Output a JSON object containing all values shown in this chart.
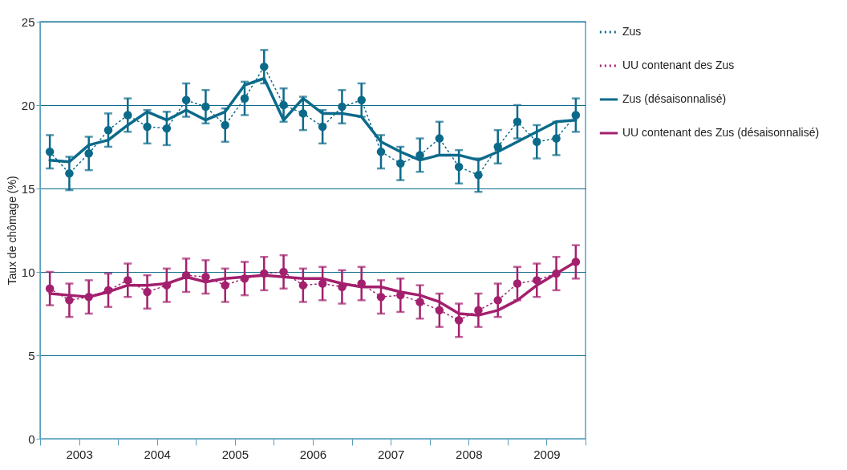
{
  "chart_data": {
    "type": "line",
    "ylabel": "Taux de chômage (%)",
    "x": [
      2003.125,
      2003.375,
      2003.625,
      2003.875,
      2004.125,
      2004.375,
      2004.625,
      2004.875,
      2005.125,
      2005.375,
      2005.625,
      2005.875,
      2006.125,
      2006.375,
      2006.625,
      2006.875,
      2007.125,
      2007.375,
      2007.625,
      2007.875,
      2008.125,
      2008.375,
      2008.625,
      2008.875,
      2009.125,
      2009.375,
      2009.625,
      2009.875
    ],
    "xlim": [
      2003,
      2010
    ],
    "xticks": [
      {
        "value": 2003,
        "label": null
      },
      {
        "value": 2003.5,
        "label": "2003"
      },
      {
        "value": 2004,
        "label": null
      },
      {
        "value": 2004.5,
        "label": "2004"
      },
      {
        "value": 2005,
        "label": null
      },
      {
        "value": 2005.5,
        "label": "2005"
      },
      {
        "value": 2006,
        "label": null
      },
      {
        "value": 2006.5,
        "label": "2006"
      },
      {
        "value": 2007,
        "label": null
      },
      {
        "value": 2007.5,
        "label": "2007"
      },
      {
        "value": 2008,
        "label": null
      },
      {
        "value": 2008.5,
        "label": "2008"
      },
      {
        "value": 2009,
        "label": null
      },
      {
        "value": 2009.5,
        "label": "2009"
      },
      {
        "value": 2010,
        "label": null
      }
    ],
    "ylim": [
      0,
      25
    ],
    "yticks": [
      0,
      5,
      10,
      15,
      20,
      25
    ],
    "grid": "y",
    "legend": "right",
    "series": [
      {
        "name": "Zus",
        "color": "#0b6a8a",
        "line_style": "dotted",
        "marker": "circle",
        "values": [
          17.2,
          15.9,
          17.1,
          18.5,
          19.4,
          18.7,
          18.6,
          20.3,
          19.9,
          18.8,
          20.4,
          22.3,
          20.0,
          19.5,
          18.7,
          19.9,
          20.3,
          17.2,
          16.5,
          17.0,
          18.0,
          16.3,
          15.8,
          17.5,
          19.0,
          17.8,
          18.0,
          19.4
        ],
        "errors": [
          1,
          1,
          1,
          1,
          1,
          1,
          1,
          1,
          1,
          1,
          1,
          1,
          1,
          1,
          1,
          1,
          1,
          1,
          1,
          1,
          1,
          1,
          1,
          1,
          1,
          1,
          1,
          1
        ]
      },
      {
        "name": "UU contenant des Zus",
        "color": "#a3206e",
        "line_style": "dotted",
        "marker": "circle",
        "values": [
          9.0,
          8.3,
          8.5,
          8.9,
          9.5,
          8.8,
          9.2,
          9.8,
          9.7,
          9.2,
          9.6,
          9.9,
          10.0,
          9.2,
          9.3,
          9.1,
          9.3,
          8.5,
          8.6,
          8.2,
          7.7,
          7.1,
          7.7,
          8.3,
          9.3,
          9.5,
          9.9,
          10.6
        ],
        "errors": [
          1,
          1,
          1,
          1,
          1,
          1,
          1,
          1,
          1,
          1,
          1,
          1,
          1,
          1,
          1,
          1,
          1,
          1,
          1,
          1,
          1,
          1,
          1,
          1,
          1,
          1,
          1,
          1
        ]
      },
      {
        "name": "Zus (désaisonnalisé)",
        "color": "#0b6a8a",
        "line_style": "solid",
        "marker": "none",
        "values": [
          16.7,
          16.6,
          17.6,
          17.9,
          18.8,
          19.6,
          19.1,
          19.7,
          19.1,
          19.6,
          21.2,
          21.6,
          19.1,
          20.4,
          19.5,
          19.5,
          19.3,
          17.8,
          17.2,
          16.7,
          17.0,
          17.0,
          16.7,
          17.2,
          17.8,
          18.4,
          19.0,
          19.1
        ]
      },
      {
        "name": "UU contenant des Zus (désaisonnalisé)",
        "color": "#a3206e",
        "line_style": "solid",
        "marker": "none",
        "values": [
          8.7,
          8.6,
          8.5,
          8.8,
          9.2,
          9.2,
          9.3,
          9.7,
          9.4,
          9.6,
          9.7,
          9.8,
          9.7,
          9.6,
          9.6,
          9.3,
          9.1,
          9.1,
          8.8,
          8.6,
          8.2,
          7.5,
          7.4,
          7.7,
          8.3,
          9.2,
          9.9,
          10.6
        ]
      }
    ]
  }
}
